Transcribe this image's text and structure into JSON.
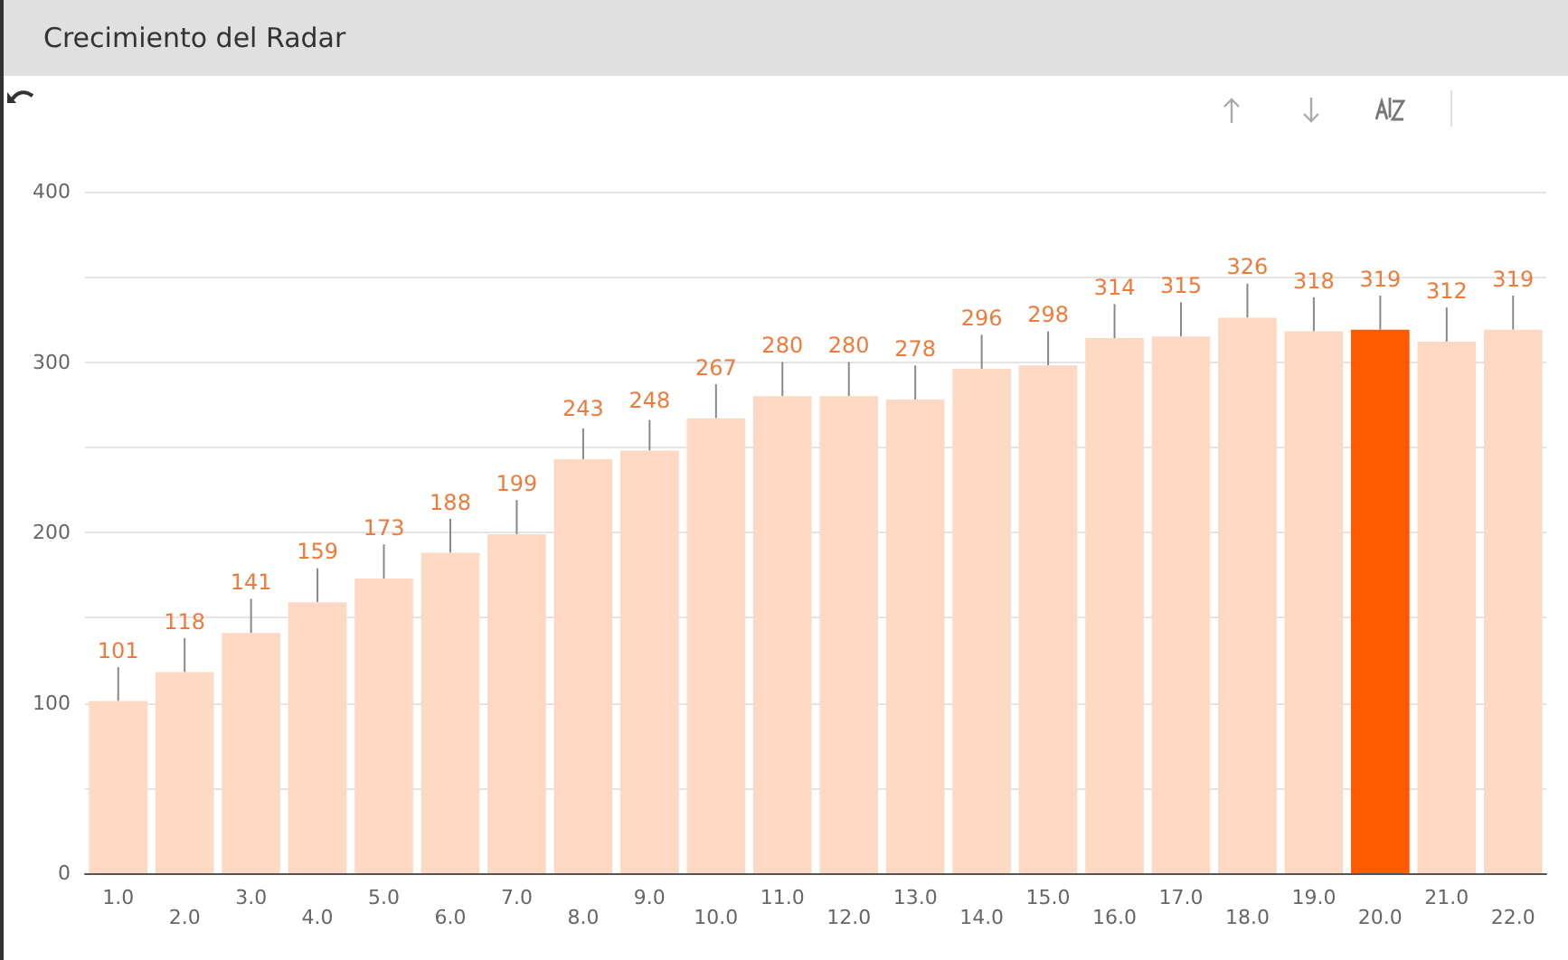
{
  "chart_data": {
    "type": "bar",
    "title": "Crecimiento del Radar",
    "categories": [
      "1.0",
      "2.0",
      "3.0",
      "4.0",
      "5.0",
      "6.0",
      "7.0",
      "8.0",
      "9.0",
      "10.0",
      "11.0",
      "12.0",
      "13.0",
      "14.0",
      "15.0",
      "16.0",
      "17.0",
      "18.0",
      "19.0",
      "20.0",
      "21.0",
      "22.0"
    ],
    "values": [
      101,
      118,
      141,
      159,
      173,
      188,
      199,
      243,
      248,
      267,
      280,
      280,
      278,
      296,
      298,
      314,
      315,
      326,
      318,
      319,
      312,
      319
    ],
    "colors": [
      "#fdd9c4",
      "#fdd9c4",
      "#fdd9c4",
      "#fdd9c4",
      "#fdd9c4",
      "#fdd9c4",
      "#fdd9c4",
      "#fdd9c4",
      "#fdd9c4",
      "#fdd9c4",
      "#fdd9c4",
      "#fdd9c4",
      "#fdd9c4",
      "#fdd9c4",
      "#fdd9c4",
      "#fdd9c4",
      "#fdd9c4",
      "#fdd9c4",
      "#fdd9c4",
      "#ff5a00",
      "#fdd9c4",
      "#fdd9c4"
    ],
    "errors": [
      [
        101,
        121
      ],
      [
        118,
        138
      ],
      [
        141,
        161
      ],
      [
        159,
        179
      ],
      [
        173,
        193
      ],
      [
        188,
        208
      ],
      [
        199,
        219
      ],
      [
        243,
        261
      ],
      [
        248,
        266
      ],
      [
        267,
        287
      ],
      [
        280,
        300
      ],
      [
        280,
        300
      ],
      [
        278,
        298
      ],
      [
        296,
        316
      ],
      [
        298,
        318
      ],
      [
        314,
        334
      ],
      [
        315,
        335
      ],
      [
        326,
        346
      ],
      [
        318,
        338
      ],
      [
        319,
        339
      ],
      [
        312,
        332
      ],
      [
        319,
        339
      ]
    ],
    "ylim": [
      0,
      400
    ],
    "yticks": [
      0,
      {
        "value": 50,
        "label": null
      },
      100,
      {
        "value": 150,
        "label": null
      },
      200,
      {
        "value": 250,
        "label": null
      },
      300,
      {
        "value": 350,
        "label": null
      },
      400
    ],
    "grid": "y",
    "data_labels": true
  }
}
